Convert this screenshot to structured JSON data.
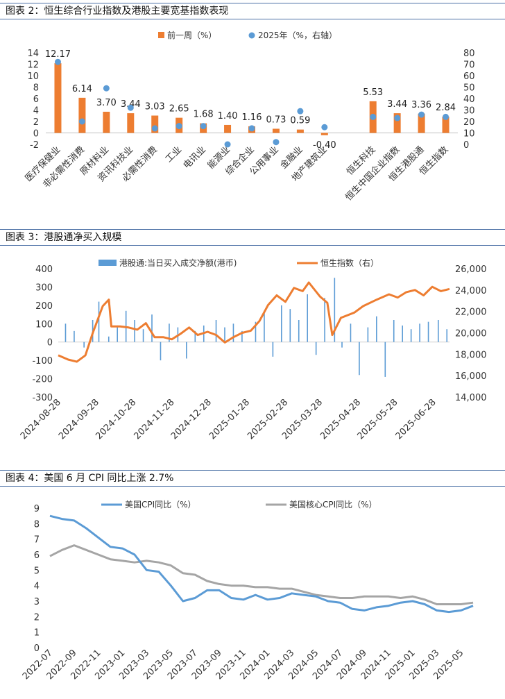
{
  "figure1": {
    "caption": "图表 2：恒生综合行业指数及港股主要宽基指数表现",
    "legend_bar": "前一周（%）",
    "legend_dot": "2025年（%，右轴）",
    "colors": {
      "bar": "#ED7D31",
      "dot": "#5B9BD5"
    }
  },
  "figure2": {
    "caption": "图表 3：港股通净买入规模",
    "legend_bar": "港股通:当日买入成交净额(港币)",
    "legend_line": "恒生指数（右）",
    "colors": {
      "bar": "#5B9BD5",
      "line": "#ED7D31"
    }
  },
  "figure3": {
    "caption": "图表 4：美国 6 月 CPI 同比上涨 2.7%",
    "legend_a": "美国CPI同比（%）",
    "legend_b": "美国核心CPI同比（%）",
    "colors": {
      "a": "#5B9BD5",
      "b": "#A5A5A5"
    }
  },
  "chart_data": [
    {
      "type": "bar",
      "categories": [
        "医疗保健业",
        "非必需性消费",
        "原材料业",
        "资讯科技业",
        "必需性消费",
        "工业",
        "电讯业",
        "能源业",
        "综合企业",
        "公用事业",
        "金融业",
        "地产建筑业",
        "",
        "恒生科技",
        "恒生中国企业指数",
        "恒生港股通",
        "恒生指数"
      ],
      "series": [
        {
          "name": "前一周（%）",
          "axis": "left",
          "values": [
            12.17,
            6.14,
            3.7,
            3.44,
            3.03,
            2.65,
            1.68,
            1.4,
            1.16,
            0.73,
            0.59,
            -0.4,
            null,
            5.53,
            3.44,
            3.36,
            2.84
          ]
        },
        {
          "name": "2025年（%，右轴）",
          "axis": "right",
          "render": "scatter",
          "values": [
            72,
            20,
            49,
            32,
            14,
            16,
            16,
            0,
            14,
            2,
            29,
            15,
            null,
            24,
            23,
            26,
            24
          ]
        }
      ],
      "data_labels": [
        "12.17",
        "6.14",
        "3.70",
        "3.44",
        "3.03",
        "2.65",
        "1.68",
        "1.40",
        "1.16",
        "0.73",
        "0.59",
        "-0.40",
        "",
        "5.53",
        "3.44",
        "3.36",
        "2.84"
      ],
      "ylim": [
        -2,
        14
      ],
      "yticks": [
        "14",
        "12",
        "10",
        "8",
        "6",
        "4",
        "2",
        "0",
        "-2"
      ],
      "y2lim": [
        0,
        80
      ],
      "y2ticks": [
        "80",
        "70",
        "60",
        "50",
        "40",
        "30",
        "20",
        "10",
        "0"
      ],
      "legend": "top"
    },
    {
      "type": "bar",
      "x_start": "2024-08-28",
      "x_end": "2025-07-11",
      "xticks": [
        "2024-08-28",
        "2024-09-28",
        "2024-10-28",
        "2024-11-28",
        "2024-12-28",
        "2025-01-28",
        "2025-02-28",
        "2025-03-28",
        "2025-04-28",
        "2025-05-28",
        "2025-06-28"
      ],
      "ylim": [
        -300,
        400
      ],
      "yticks": [
        "400",
        "300",
        "200",
        "100",
        "0",
        "-100",
        "-200",
        "-300"
      ],
      "y2lim": [
        14000,
        26000
      ],
      "y2ticks": [
        "26,000",
        "24,000",
        "22,000",
        "20,000",
        "18,000",
        "16,000",
        "14,000"
      ],
      "series": [
        {
          "name": "港股通:当日买入成交净额(港币)",
          "axis": "left",
          "render": "bar",
          "points": [
            [
              "2024-09-03",
              100
            ],
            [
              "2024-09-10",
              60
            ],
            [
              "2024-09-18",
              -30
            ],
            [
              "2024-09-25",
              120
            ],
            [
              "2024-09-30",
              220
            ],
            [
              "2024-10-08",
              30
            ],
            [
              "2024-10-15",
              90
            ],
            [
              "2024-10-22",
              170
            ],
            [
              "2024-10-29",
              120
            ],
            [
              "2024-11-05",
              70
            ],
            [
              "2024-11-12",
              150
            ],
            [
              "2024-11-19",
              -100
            ],
            [
              "2024-11-26",
              100
            ],
            [
              "2024-12-03",
              80
            ],
            [
              "2024-12-10",
              -90
            ],
            [
              "2024-12-17",
              60
            ],
            [
              "2024-12-24",
              90
            ],
            [
              "2025-01-03",
              120
            ],
            [
              "2025-01-10",
              80
            ],
            [
              "2025-01-17",
              100
            ],
            [
              "2025-01-24",
              60
            ],
            [
              "2025-02-04",
              110
            ],
            [
              "2025-02-11",
              170
            ],
            [
              "2025-02-18",
              -80
            ],
            [
              "2025-02-25",
              200
            ],
            [
              "2025-03-04",
              180
            ],
            [
              "2025-03-11",
              120
            ],
            [
              "2025-03-18",
              260
            ],
            [
              "2025-03-25",
              -70
            ],
            [
              "2025-04-01",
              240
            ],
            [
              "2025-04-09",
              350
            ],
            [
              "2025-04-15",
              -30
            ],
            [
              "2025-04-22",
              100
            ],
            [
              "2025-04-29",
              -180
            ],
            [
              "2025-05-06",
              80
            ],
            [
              "2025-05-13",
              140
            ],
            [
              "2025-05-20",
              -190
            ],
            [
              "2025-05-27",
              120
            ],
            [
              "2025-06-03",
              90
            ],
            [
              "2025-06-10",
              70
            ],
            [
              "2025-06-17",
              100
            ],
            [
              "2025-06-24",
              110
            ],
            [
              "2025-07-02",
              120
            ],
            [
              "2025-07-09",
              70
            ]
          ]
        },
        {
          "name": "恒生指数（右）",
          "axis": "right",
          "render": "line",
          "points": [
            [
              "2024-08-28",
              17900
            ],
            [
              "2024-09-05",
              17500
            ],
            [
              "2024-09-12",
              17300
            ],
            [
              "2024-09-19",
              17900
            ],
            [
              "2024-09-25",
              20000
            ],
            [
              "2024-10-03",
              22500
            ],
            [
              "2024-10-08",
              23100
            ],
            [
              "2024-10-10",
              20600
            ],
            [
              "2024-10-17",
              20600
            ],
            [
              "2024-10-24",
              20500
            ],
            [
              "2024-10-31",
              20300
            ],
            [
              "2024-11-07",
              20900
            ],
            [
              "2024-11-14",
              19600
            ],
            [
              "2024-11-21",
              19600
            ],
            [
              "2024-11-28",
              19400
            ],
            [
              "2024-12-05",
              19900
            ],
            [
              "2024-12-12",
              20500
            ],
            [
              "2024-12-19",
              19800
            ],
            [
              "2024-12-27",
              20100
            ],
            [
              "2025-01-03",
              19800
            ],
            [
              "2025-01-10",
              19100
            ],
            [
              "2025-01-17",
              19600
            ],
            [
              "2025-01-24",
              20000
            ],
            [
              "2025-01-31",
              20200
            ],
            [
              "2025-02-07",
              21100
            ],
            [
              "2025-02-14",
              22600
            ],
            [
              "2025-02-21",
              23500
            ],
            [
              "2025-02-28",
              22900
            ],
            [
              "2025-03-07",
              24200
            ],
            [
              "2025-03-14",
              23900
            ],
            [
              "2025-03-19",
              24700
            ],
            [
              "2025-03-28",
              23400
            ],
            [
              "2025-04-03",
              22800
            ],
            [
              "2025-04-07",
              19800
            ],
            [
              "2025-04-14",
              21400
            ],
            [
              "2025-04-25",
              21900
            ],
            [
              "2025-05-02",
              22500
            ],
            [
              "2025-05-13",
              23100
            ],
            [
              "2025-05-23",
              23600
            ],
            [
              "2025-05-30",
              23300
            ],
            [
              "2025-06-06",
              23800
            ],
            [
              "2025-06-13",
              24000
            ],
            [
              "2025-06-20",
              23500
            ],
            [
              "2025-06-27",
              24300
            ],
            [
              "2025-07-04",
              23900
            ],
            [
              "2025-07-11",
              24100
            ]
          ]
        }
      ],
      "legend": "top"
    },
    {
      "type": "line",
      "x": [
        "2022-07",
        "2022-08",
        "2022-09",
        "2022-10",
        "2022-11",
        "2022-12",
        "2023-01",
        "2023-02",
        "2023-03",
        "2023-04",
        "2023-05",
        "2023-06",
        "2023-07",
        "2023-08",
        "2023-09",
        "2023-10",
        "2023-11",
        "2023-12",
        "2024-01",
        "2024-02",
        "2024-03",
        "2024-04",
        "2024-05",
        "2024-06",
        "2024-07",
        "2024-08",
        "2024-09",
        "2024-10",
        "2024-11",
        "2024-12",
        "2025-01",
        "2025-02",
        "2025-03",
        "2025-04",
        "2025-05",
        "2025-06"
      ],
      "xticks": [
        "2022-07",
        "2022-09",
        "2022-11",
        "2023-01",
        "2023-03",
        "2023-05",
        "2023-07",
        "2023-09",
        "2023-11",
        "2024-01",
        "2024-03",
        "2024-05",
        "2024-07",
        "2024-09",
        "2024-11",
        "2025-01",
        "2025-03",
        "2025-05"
      ],
      "series": [
        {
          "name": "美国CPI同比（%）",
          "values": [
            8.5,
            8.3,
            8.2,
            7.7,
            7.1,
            6.5,
            6.4,
            6.0,
            5.0,
            4.9,
            4.0,
            3.0,
            3.2,
            3.7,
            3.7,
            3.2,
            3.1,
            3.4,
            3.1,
            3.2,
            3.5,
            3.4,
            3.3,
            3.0,
            2.9,
            2.5,
            2.4,
            2.6,
            2.7,
            2.9,
            3.0,
            2.8,
            2.4,
            2.3,
            2.4,
            2.7
          ]
        },
        {
          "name": "美国核心CPI同比（%）",
          "values": [
            5.9,
            6.3,
            6.6,
            6.3,
            6.0,
            5.7,
            5.6,
            5.5,
            5.6,
            5.5,
            5.3,
            4.8,
            4.7,
            4.3,
            4.1,
            4.0,
            4.0,
            3.9,
            3.9,
            3.8,
            3.8,
            3.6,
            3.4,
            3.3,
            3.2,
            3.2,
            3.3,
            3.3,
            3.3,
            3.2,
            3.3,
            3.1,
            2.8,
            2.8,
            2.8,
            2.9
          ]
        }
      ],
      "ylim": [
        0,
        9
      ],
      "yticks": [
        "9",
        "8",
        "7",
        "6",
        "5",
        "4",
        "3",
        "2",
        "1",
        "0"
      ],
      "legend": "top"
    }
  ]
}
